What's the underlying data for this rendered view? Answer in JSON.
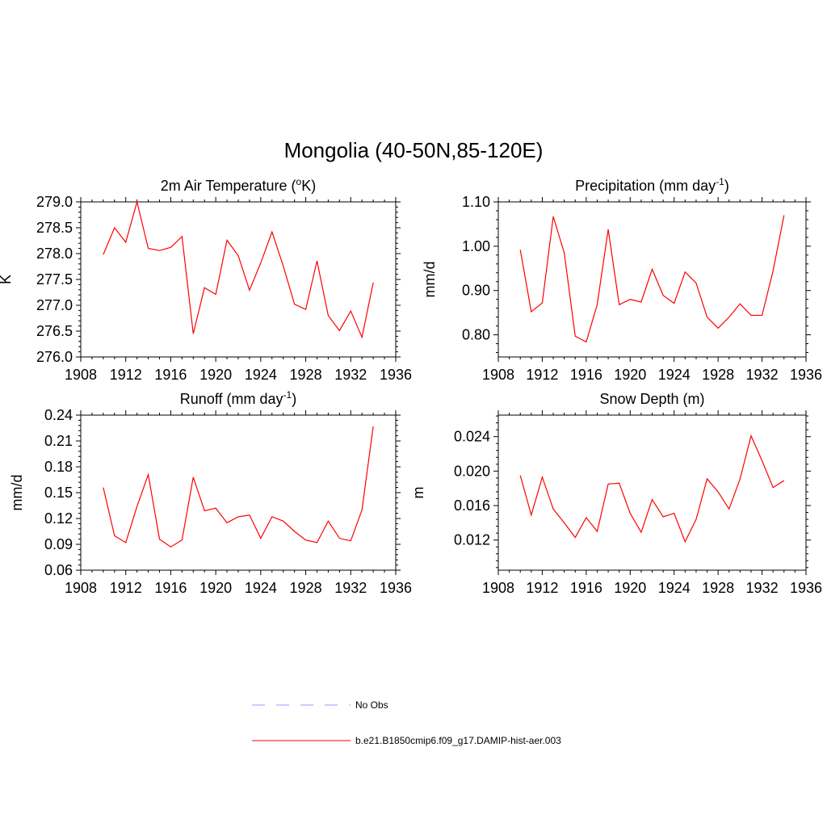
{
  "figure": {
    "title": "Mongolia (40-50N,85-120E)"
  },
  "legend": {
    "entries": [
      {
        "label": "No Obs",
        "color": "#9999ff",
        "dash": "dashed"
      },
      {
        "label": "b.e21.B1850cmip6.f09_g17.DAMIP-hist-aer.003",
        "color": "#ff0000",
        "dash": "solid"
      }
    ]
  },
  "chart_data": [
    {
      "type": "line",
      "title": "2m Air Temperature (°K)",
      "title_parts": {
        "before": "2m Air Temperature (",
        "sup": "o",
        "after": "K)"
      },
      "ylabel": "K",
      "xlim": [
        1908,
        1936
      ],
      "ylim": [
        276.0,
        279.0
      ],
      "xticks": [
        "1908",
        "1912",
        "1916",
        "1920",
        "1924",
        "1928",
        "1932",
        "1936"
      ],
      "yticks": [
        "276.0",
        "276.5",
        "277.0",
        "277.5",
        "278.0",
        "278.5",
        "279.0"
      ],
      "x": [
        1910,
        1911,
        1912,
        1913,
        1914,
        1915,
        1916,
        1917,
        1918,
        1919,
        1920,
        1921,
        1922,
        1923,
        1924,
        1925,
        1926,
        1927,
        1928,
        1929,
        1930,
        1931,
        1932,
        1933,
        1934
      ],
      "series": [
        {
          "color": "#ff0000",
          "values": [
            277.98,
            278.5,
            278.22,
            279.0,
            278.1,
            278.06,
            278.12,
            278.33,
            276.45,
            277.34,
            277.21,
            278.26,
            277.96,
            277.29,
            277.82,
            278.42,
            277.76,
            277.02,
            276.92,
            277.86,
            276.8,
            276.51,
            276.89,
            276.38,
            277.44
          ]
        }
      ]
    },
    {
      "type": "line",
      "title": "Precipitation (mm day-1)",
      "title_parts": {
        "before": "Precipitation (mm day",
        "sup": "-1",
        "after": ")"
      },
      "ylabel": "mm/d",
      "xlim": [
        1908,
        1936
      ],
      "ylim": [
        0.75,
        1.1
      ],
      "xticks": [
        "1908",
        "1912",
        "1916",
        "1920",
        "1924",
        "1928",
        "1932",
        "1936"
      ],
      "yticks": [
        "0.80",
        "0.90",
        "1.00",
        "1.10"
      ],
      "x": [
        1910,
        1911,
        1912,
        1913,
        1914,
        1915,
        1916,
        1917,
        1918,
        1919,
        1920,
        1921,
        1922,
        1923,
        1924,
        1925,
        1926,
        1927,
        1928,
        1929,
        1930,
        1931,
        1932,
        1933,
        1934
      ],
      "series": [
        {
          "color": "#ff0000",
          "values": [
            0.992,
            0.852,
            0.872,
            1.067,
            0.985,
            0.797,
            0.784,
            0.868,
            1.038,
            0.868,
            0.88,
            0.874,
            0.948,
            0.889,
            0.871,
            0.942,
            0.917,
            0.84,
            0.815,
            0.84,
            0.87,
            0.844,
            0.844,
            0.944,
            1.07
          ]
        }
      ]
    },
    {
      "type": "line",
      "title": "Runoff (mm day-1)",
      "title_parts": {
        "before": "Runoff (mm day",
        "sup": "-1",
        "after": ")"
      },
      "ylabel": "mm/d",
      "xlim": [
        1908,
        1936
      ],
      "ylim": [
        0.06,
        0.24
      ],
      "xticks": [
        "1908",
        "1912",
        "1916",
        "1920",
        "1924",
        "1928",
        "1932",
        "1936"
      ],
      "yticks": [
        "0.06",
        "0.09",
        "0.12",
        "0.15",
        "0.18",
        "0.21",
        "0.24"
      ],
      "x": [
        1910,
        1911,
        1912,
        1913,
        1914,
        1915,
        1916,
        1917,
        1918,
        1919,
        1920,
        1921,
        1922,
        1923,
        1924,
        1925,
        1926,
        1927,
        1928,
        1929,
        1930,
        1931,
        1932,
        1933,
        1934
      ],
      "series": [
        {
          "color": "#ff0000",
          "values": [
            0.156,
            0.1,
            0.092,
            0.134,
            0.171,
            0.096,
            0.087,
            0.095,
            0.168,
            0.129,
            0.132,
            0.115,
            0.122,
            0.124,
            0.097,
            0.122,
            0.117,
            0.105,
            0.095,
            0.092,
            0.117,
            0.097,
            0.094,
            0.13,
            0.227
          ]
        }
      ]
    },
    {
      "type": "line",
      "title": "Snow Depth (m)",
      "title_parts": {
        "before": "Snow Depth (m)",
        "sup": "",
        "after": ""
      },
      "ylabel": "m",
      "xlim": [
        1908,
        1936
      ],
      "ylim": [
        0.0085,
        0.0265
      ],
      "xticks": [
        "1908",
        "1912",
        "1916",
        "1920",
        "1924",
        "1928",
        "1932",
        "1936"
      ],
      "yticks": [
        "0.012",
        "0.016",
        "0.020",
        "0.024"
      ],
      "x": [
        1910,
        1911,
        1912,
        1913,
        1914,
        1915,
        1916,
        1917,
        1918,
        1919,
        1920,
        1921,
        1922,
        1923,
        1924,
        1925,
        1926,
        1927,
        1928,
        1929,
        1930,
        1931,
        1932,
        1933,
        1934
      ],
      "series": [
        {
          "color": "#ff0000",
          "values": [
            0.0195,
            0.0149,
            0.0193,
            0.0156,
            0.014,
            0.0123,
            0.0146,
            0.013,
            0.0185,
            0.0186,
            0.0151,
            0.0129,
            0.0167,
            0.0147,
            0.0151,
            0.0118,
            0.0144,
            0.0191,
            0.0176,
            0.0156,
            0.0191,
            0.0241,
            0.0212,
            0.0181,
            0.0189
          ]
        }
      ]
    }
  ]
}
